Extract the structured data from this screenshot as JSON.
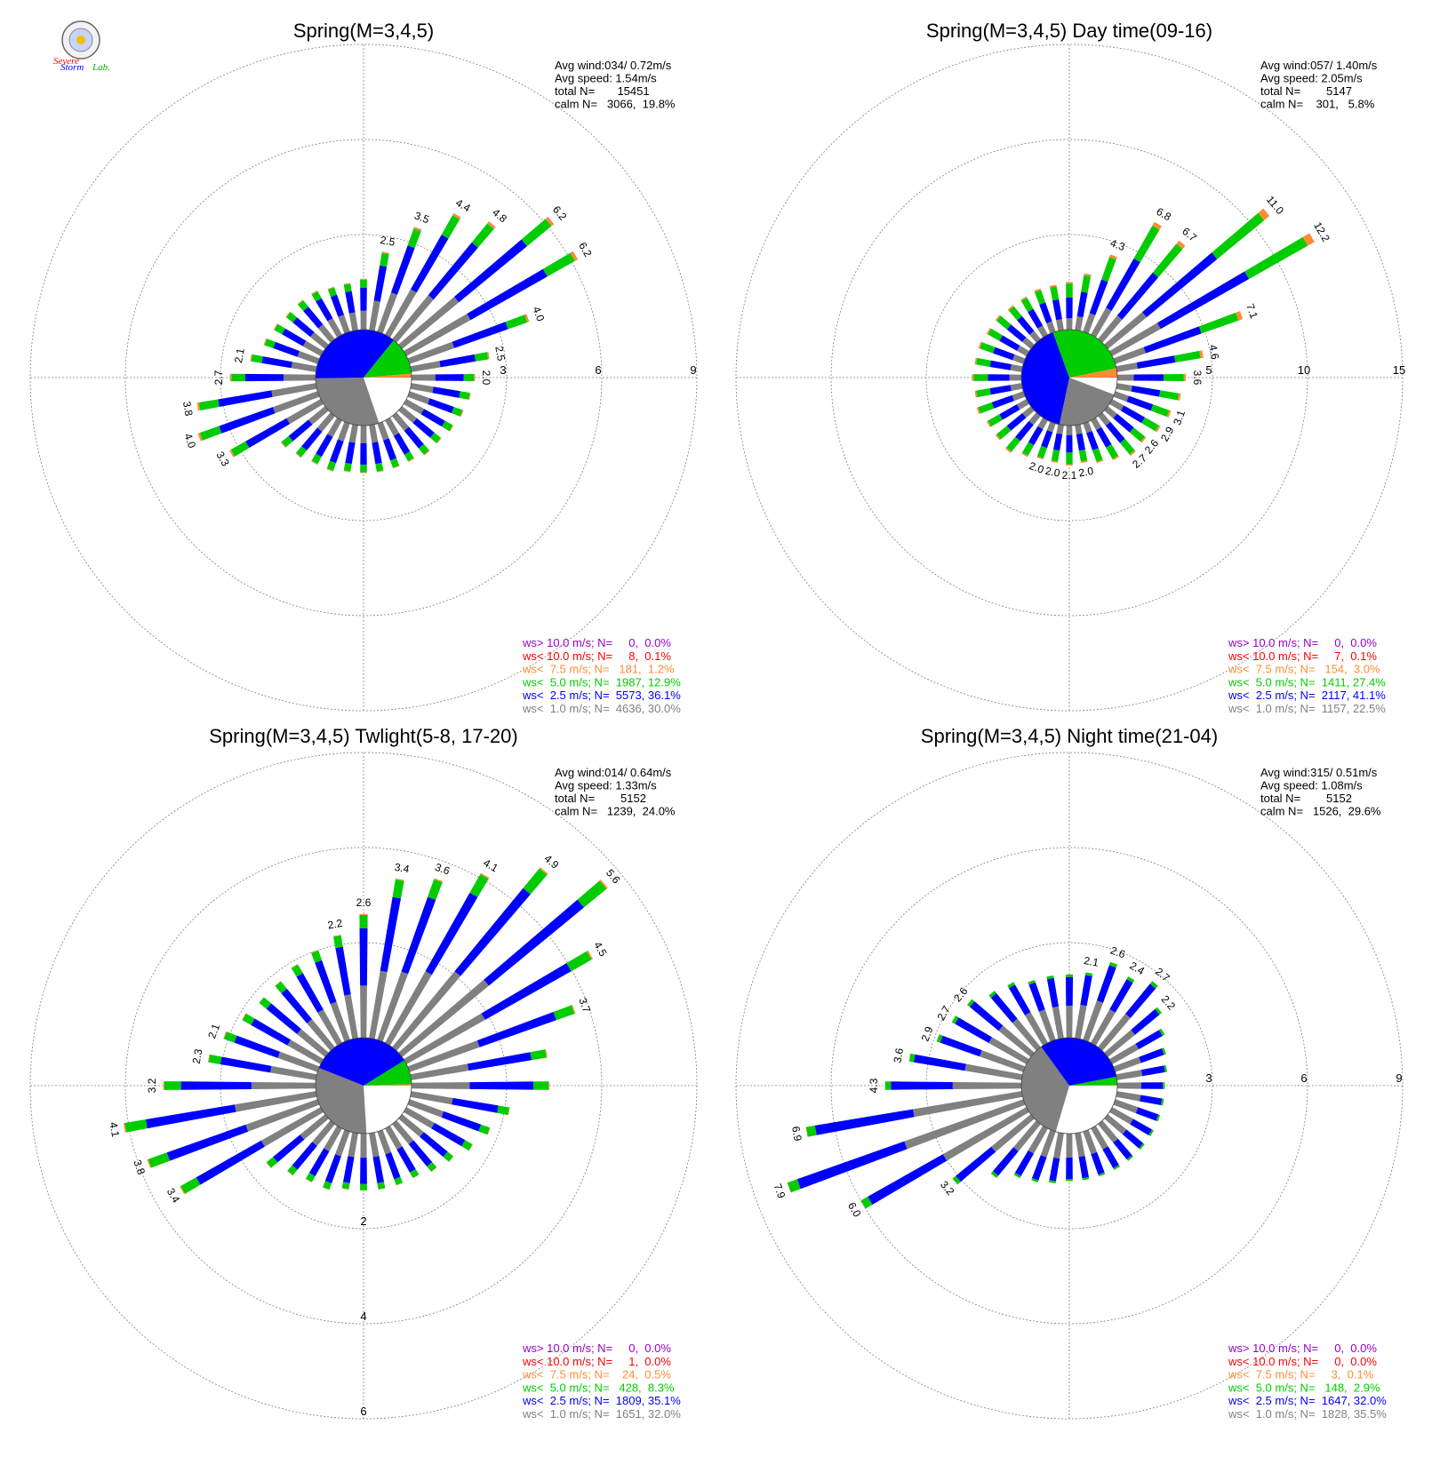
{
  "logo": {
    "text_severe": "Severe",
    "text_storm": "Storm",
    "text_lab": "Lab."
  },
  "colors": {
    "lt1": "#808080",
    "lt2_5": "#0000ff",
    "lt5": "#00cc00",
    "lt7_5": "#ff8c33",
    "lt10": "#ff0000",
    "gt10": "#9900cc",
    "calm": "#ffffff",
    "grid": "#808080"
  },
  "chart_data": [
    {
      "type": "wind-rose",
      "title": "Spring(M=3,4,5)",
      "stats": {
        "avg_wind": "Avg wind:034/ 0.72m/s",
        "avg_speed": "Avg speed: 1.54m/s",
        "total": "total N=       15451",
        "calm": "calm N=   3066,  19.8%"
      },
      "rings": [
        3,
        6,
        9
      ],
      "ring_label_angle": 90,
      "calm_pie": [
        19.8,
        30.0,
        36.1,
        12.9,
        1.2,
        0.1,
        0.0
      ],
      "bars": [
        {
          "dir": 0,
          "total": 1.6
        },
        {
          "dir": 10,
          "total": 2.5,
          "label": "2.5"
        },
        {
          "dir": 20,
          "total": 3.5,
          "label": "3.5"
        },
        {
          "dir": 30,
          "total": 4.4,
          "label": "4.4"
        },
        {
          "dir": 40,
          "total": 4.8,
          "label": "4.8"
        },
        {
          "dir": 50,
          "total": 6.2,
          "label": "6.2"
        },
        {
          "dir": 60,
          "total": 6.2,
          "label": "6.2"
        },
        {
          "dir": 70,
          "total": 4.0,
          "label": "4.0"
        },
        {
          "dir": 80,
          "total": 2.5,
          "label": "2.5"
        },
        {
          "dir": 90,
          "total": 2.0,
          "label": "2.0"
        },
        {
          "dir": 100,
          "total": 1.9
        },
        {
          "dir": 110,
          "total": 1.8
        },
        {
          "dir": 120,
          "total": 1.7
        },
        {
          "dir": 130,
          "total": 1.6
        },
        {
          "dir": 140,
          "total": 1.6
        },
        {
          "dir": 150,
          "total": 1.5
        },
        {
          "dir": 160,
          "total": 1.5
        },
        {
          "dir": 170,
          "total": 1.5
        },
        {
          "dir": 180,
          "total": 1.5
        },
        {
          "dir": 190,
          "total": 1.5
        },
        {
          "dir": 200,
          "total": 1.6
        },
        {
          "dir": 210,
          "total": 1.6
        },
        {
          "dir": 220,
          "total": 1.7
        },
        {
          "dir": 230,
          "total": 1.8
        },
        {
          "dir": 240,
          "total": 3.3,
          "label": "3.3"
        },
        {
          "dir": 250,
          "total": 4.0,
          "label": "4.0"
        },
        {
          "dir": 260,
          "total": 3.8,
          "label": "3.8"
        },
        {
          "dir": 270,
          "total": 2.7,
          "label": "2.7"
        },
        {
          "dir": 280,
          "total": 2.1,
          "label": "2.1"
        },
        {
          "dir": 290,
          "total": 1.8
        },
        {
          "dir": 300,
          "total": 1.7
        },
        {
          "dir": 310,
          "total": 1.6
        },
        {
          "dir": 320,
          "total": 1.6
        },
        {
          "dir": 330,
          "total": 1.6
        },
        {
          "dir": 340,
          "total": 1.5
        },
        {
          "dir": 350,
          "total": 1.5
        }
      ],
      "legend": [
        "ws> 10.0 m/s; N=     0,  0.0%",
        "ws< 10.0 m/s; N=     8,  0.1%",
        "ws<  7.5 m/s; N=   181,  1.2%",
        "ws<  5.0 m/s; N=  1987, 12.9%",
        "ws<  2.5 m/s; N=  5573, 36.1%",
        "ws<  1.0 m/s; N=  4636, 30.0%"
      ]
    },
    {
      "type": "wind-rose",
      "title": "Spring(M=3,4,5) Day time(09-16)",
      "stats": {
        "avg_wind": "Avg wind:057/ 1.40m/s",
        "avg_speed": "Avg speed: 2.05m/s",
        "total": "total N=        5147",
        "calm": "calm N=    301,   5.8%"
      },
      "rings": [
        5,
        10,
        15
      ],
      "ring_label_angle": 90,
      "calm_pie": [
        5.8,
        22.5,
        41.1,
        27.4,
        3.0,
        0.1,
        0.0
      ],
      "bars": [
        {
          "dir": 0,
          "total": 2.5
        },
        {
          "dir": 10,
          "total": 3.0
        },
        {
          "dir": 20,
          "total": 4.3,
          "label": "4.3"
        },
        {
          "dir": 30,
          "total": 6.8,
          "label": "6.8"
        },
        {
          "dir": 40,
          "total": 6.7,
          "label": "6.7"
        },
        {
          "dir": 50,
          "total": 11.0,
          "label": "11.0"
        },
        {
          "dir": 60,
          "total": 12.2,
          "label": "12.2"
        },
        {
          "dir": 70,
          "total": 7.1,
          "label": "7.1"
        },
        {
          "dir": 80,
          "total": 4.6,
          "label": "4.6"
        },
        {
          "dir": 90,
          "total": 3.6,
          "label": "3.6"
        },
        {
          "dir": 100,
          "total": 3.4
        },
        {
          "dir": 110,
          "total": 3.1,
          "label": "3.1"
        },
        {
          "dir": 120,
          "total": 2.9,
          "label": "2.9"
        },
        {
          "dir": 130,
          "total": 2.6,
          "label": "2.6"
        },
        {
          "dir": 140,
          "total": 2.7,
          "label": "2.7"
        },
        {
          "dir": 150,
          "total": 2.4
        },
        {
          "dir": 160,
          "total": 2.2
        },
        {
          "dir": 170,
          "total": 2.0,
          "label": "2.0"
        },
        {
          "dir": 180,
          "total": 2.1,
          "label": "2.1"
        },
        {
          "dir": 190,
          "total": 2.0,
          "label": "2.0"
        },
        {
          "dir": 200,
          "total": 2.0,
          "label": "2.0"
        },
        {
          "dir": 210,
          "total": 2.2
        },
        {
          "dir": 220,
          "total": 2.5
        },
        {
          "dir": 230,
          "total": 2.4
        },
        {
          "dir": 240,
          "total": 2.4
        },
        {
          "dir": 250,
          "total": 2.6
        },
        {
          "dir": 260,
          "total": 2.5
        },
        {
          "dir": 270,
          "total": 2.6
        },
        {
          "dir": 280,
          "total": 2.5
        },
        {
          "dir": 290,
          "total": 2.5
        },
        {
          "dir": 300,
          "total": 2.4
        },
        {
          "dir": 310,
          "total": 2.4
        },
        {
          "dir": 320,
          "total": 2.3
        },
        {
          "dir": 330,
          "total": 2.3
        },
        {
          "dir": 340,
          "total": 2.4
        },
        {
          "dir": 350,
          "total": 2.4
        }
      ],
      "legend": [
        "ws> 10.0 m/s; N=     0,  0.0%",
        "ws< 10.0 m/s; N=     7,  0.1%",
        "ws<  7.5 m/s; N=   154,  3.0%",
        "ws<  5.0 m/s; N=  1411, 27.4%",
        "ws<  2.5 m/s; N=  2117, 41.1%",
        "ws<  1.0 m/s; N=  1157, 22.5%"
      ]
    },
    {
      "type": "wind-rose",
      "title": "Spring(M=3,4,5) Twlight(5-8, 17-20)",
      "stats": {
        "avg_wind": "Avg wind:014/ 0.64m/s",
        "avg_speed": "Avg speed: 1.33m/s",
        "total": "total N=        5152",
        "calm": "calm N=   1239,  24.0%"
      },
      "rings": [
        2,
        4,
        6
      ],
      "ring_label_angle": 180,
      "calm_pie": [
        24.0,
        32.0,
        35.1,
        8.3,
        0.5,
        0.0,
        0.0
      ],
      "bars": [
        {
          "dir": 0,
          "total": 2.6,
          "label": "2.6"
        },
        {
          "dir": 10,
          "total": 3.4,
          "label": "3.4"
        },
        {
          "dir": 20,
          "total": 3.6,
          "label": "3.6"
        },
        {
          "dir": 30,
          "total": 4.1,
          "label": "4.1"
        },
        {
          "dir": 40,
          "total": 4.9,
          "label": "4.9"
        },
        {
          "dir": 50,
          "total": 5.6,
          "label": "5.6"
        },
        {
          "dir": 60,
          "total": 4.5,
          "label": "4.5"
        },
        {
          "dir": 70,
          "total": 3.7,
          "label": "3.7"
        },
        {
          "dir": 80,
          "total": 2.9
        },
        {
          "dir": 90,
          "total": 2.9
        },
        {
          "dir": 100,
          "total": 2.1
        },
        {
          "dir": 110,
          "total": 1.8
        },
        {
          "dir": 120,
          "total": 1.6
        },
        {
          "dir": 130,
          "total": 1.4
        },
        {
          "dir": 140,
          "total": 1.3
        },
        {
          "dir": 150,
          "total": 1.2
        },
        {
          "dir": 160,
          "total": 1.2
        },
        {
          "dir": 170,
          "total": 1.2
        },
        {
          "dir": 180,
          "total": 1.2
        },
        {
          "dir": 190,
          "total": 1.2
        },
        {
          "dir": 200,
          "total": 1.3
        },
        {
          "dir": 210,
          "total": 1.3
        },
        {
          "dir": 220,
          "total": 1.4
        },
        {
          "dir": 230,
          "total": 1.6
        },
        {
          "dir": 240,
          "total": 3.4,
          "label": "3.4"
        },
        {
          "dir": 250,
          "total": 3.8,
          "label": "3.8"
        },
        {
          "dir": 260,
          "total": 4.1,
          "label": "4.1"
        },
        {
          "dir": 270,
          "total": 3.2,
          "label": "3.2"
        },
        {
          "dir": 280,
          "total": 2.3,
          "label": "2.3"
        },
        {
          "dir": 290,
          "total": 2.1,
          "label": "2.1"
        },
        {
          "dir": 300,
          "total": 1.9
        },
        {
          "dir": 310,
          "total": 1.8
        },
        {
          "dir": 320,
          "total": 1.8
        },
        {
          "dir": 330,
          "total": 1.9
        },
        {
          "dir": 340,
          "total": 2.0
        },
        {
          "dir": 350,
          "total": 2.2,
          "label": "2.2"
        }
      ],
      "legend": [
        "ws> 10.0 m/s; N=     0,  0.0%",
        "ws< 10.0 m/s; N=     1,  0.0%",
        "ws<  7.5 m/s; N=    24,  0.5%",
        "ws<  5.0 m/s; N=   428,  8.3%",
        "ws<  2.5 m/s; N=  1809, 35.1%",
        "ws<  1.0 m/s; N=  1651, 32.0%"
      ]
    },
    {
      "type": "wind-rose",
      "title": "Spring(M=3,4,5) Night time(21-04)",
      "stats": {
        "avg_wind": "Avg wind:315/ 0.51m/s",
        "avg_speed": "Avg speed: 1.08m/s",
        "total": "total N=        5152",
        "calm": "calm N=   1526,  29.6%"
      },
      "rings": [
        3,
        6,
        9
      ],
      "ring_label_angle": 90,
      "calm_pie": [
        29.6,
        35.5,
        32.0,
        2.9,
        0.1,
        0.0,
        0.0
      ],
      "bars": [
        {
          "dir": 0,
          "total": 2.0
        },
        {
          "dir": 10,
          "total": 2.1,
          "label": "2.1"
        },
        {
          "dir": 20,
          "total": 2.6,
          "label": "2.6"
        },
        {
          "dir": 30,
          "total": 2.4,
          "label": "2.4"
        },
        {
          "dir": 40,
          "total": 2.7,
          "label": "2.7"
        },
        {
          "dir": 50,
          "total": 2.2,
          "label": "2.2"
        },
        {
          "dir": 60,
          "total": 1.9
        },
        {
          "dir": 70,
          "total": 1.7
        },
        {
          "dir": 80,
          "total": 1.6
        },
        {
          "dir": 90,
          "total": 1.5
        },
        {
          "dir": 100,
          "total": 1.5
        },
        {
          "dir": 110,
          "total": 1.5
        },
        {
          "dir": 120,
          "total": 1.5
        },
        {
          "dir": 130,
          "total": 1.5
        },
        {
          "dir": 140,
          "total": 1.5
        },
        {
          "dir": 150,
          "total": 1.5
        },
        {
          "dir": 160,
          "total": 1.5
        },
        {
          "dir": 170,
          "total": 1.5
        },
        {
          "dir": 180,
          "total": 1.5
        },
        {
          "dir": 190,
          "total": 1.6
        },
        {
          "dir": 200,
          "total": 1.7
        },
        {
          "dir": 210,
          "total": 1.8
        },
        {
          "dir": 220,
          "total": 2.2
        },
        {
          "dir": 230,
          "total": 3.2,
          "label": "3.2"
        },
        {
          "dir": 240,
          "total": 6.0,
          "label": "6.0"
        },
        {
          "dir": 250,
          "total": 7.9,
          "label": "7.9"
        },
        {
          "dir": 260,
          "total": 6.9,
          "label": "6.9"
        },
        {
          "dir": 270,
          "total": 4.3,
          "label": "4.3"
        },
        {
          "dir": 280,
          "total": 3.6,
          "label": "3.6"
        },
        {
          "dir": 290,
          "total": 2.9,
          "label": "2.9"
        },
        {
          "dir": 300,
          "total": 2.7,
          "label": "2.7"
        },
        {
          "dir": 310,
          "total": 2.6,
          "label": "2.6"
        },
        {
          "dir": 320,
          "total": 2.3
        },
        {
          "dir": 330,
          "total": 2.2
        },
        {
          "dir": 340,
          "total": 2.0
        },
        {
          "dir": 350,
          "total": 2.0
        }
      ],
      "legend": [
        "ws> 10.0 m/s; N=     0,  0.0%",
        "ws< 10.0 m/s; N=     0,  0.0%",
        "ws<  7.5 m/s; N=     3,  0.1%",
        "ws<  5.0 m/s; N=   148,  2.9%",
        "ws<  2.5 m/s; N=  1647, 32.0%",
        "ws<  1.0 m/s; N=  1828, 35.5%"
      ]
    }
  ]
}
